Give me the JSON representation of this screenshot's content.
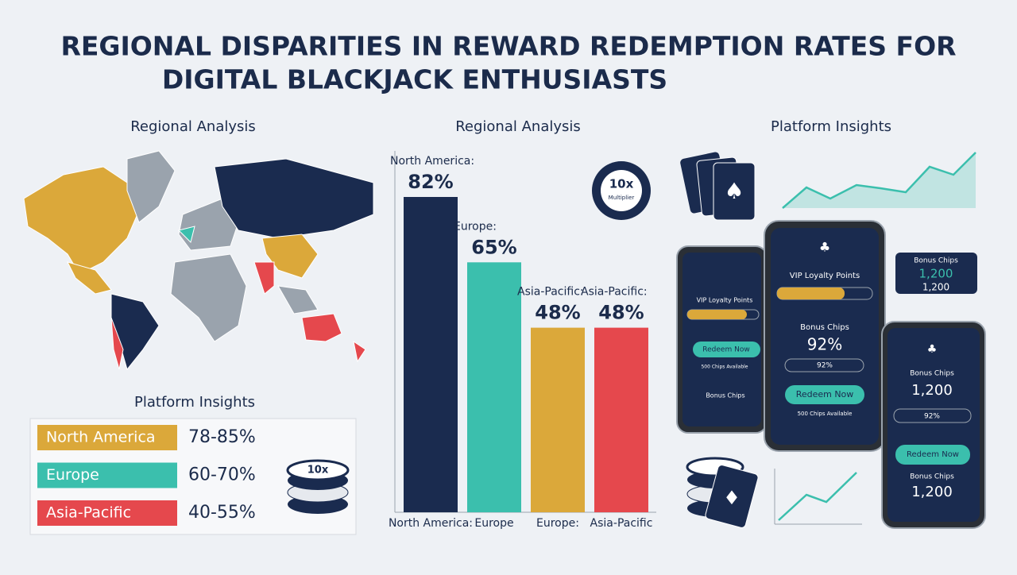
{
  "title": [
    "REGIONAL DISPARITIES IN REWARD REDEMPTION RATES FOR",
    "DIGITAL BLACKJACK ENTHUSIASTS"
  ],
  "left": {
    "map_heading": "Regional Analysis",
    "legend_heading": "Platform Insights",
    "legend": [
      {
        "label": "North America",
        "range": "78-85%",
        "color": "#dba83a"
      },
      {
        "label": "Europe",
        "range": "60-70%",
        "color": "#3bbfad"
      },
      {
        "label": "Asia-Pacific",
        "range": "40-55%",
        "color": "#e5484d"
      }
    ],
    "chip": "10x"
  },
  "chart_data": {
    "type": "bar",
    "title": "Regional Analysis",
    "categories": [
      "North America:",
      "Europe",
      "Europe:",
      "Asia-Pacific"
    ],
    "bar_labels": [
      "North America:",
      "Europe:",
      "Asia-Pacific:",
      "Asia-Pacific:"
    ],
    "values": [
      82,
      65,
      48,
      48
    ],
    "value_labels": [
      "82%",
      "65%",
      "48%",
      "48%"
    ],
    "colors": [
      "#1a2b4f",
      "#3bbfad",
      "#dba83a",
      "#e5484d"
    ],
    "chip": [
      "10x",
      "Multiplier"
    ]
  },
  "right": {
    "heading": "Platform Insights",
    "card": {
      "label": "Bonus Chips",
      "value": "1,200",
      "sub": "1,200"
    },
    "phones": [
      {
        "vip": "VIP Loyalty Points",
        "button": "Redeem Now",
        "note": "500 Chips Available",
        "label": "Bonus Chips"
      },
      {
        "vip": "VIP Loyalty Points",
        "label": "Bonus Chips",
        "value": "92%",
        "pill": "92%",
        "button": "Redeem Now",
        "note": "500 Chips Available"
      },
      {
        "label": "Bonus Chips",
        "value": "1,200",
        "pill": "92%",
        "button": "Redeem Now",
        "label2": "Bonus Chips",
        "value2": "1,200"
      }
    ]
  }
}
